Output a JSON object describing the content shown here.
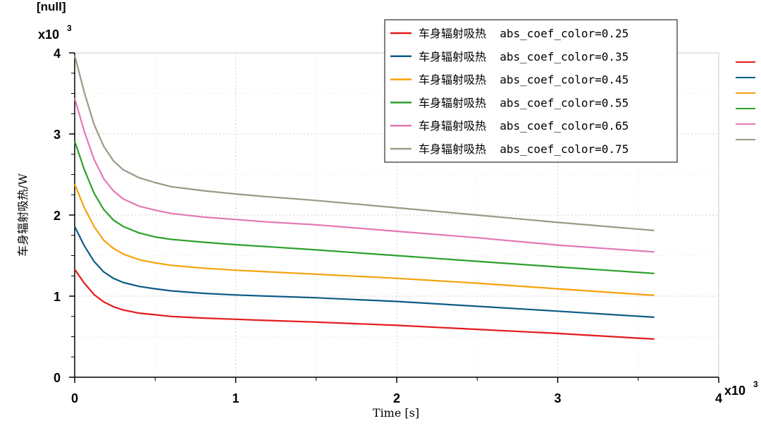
{
  "page": {
    "unit_label": "[null]",
    "y_multiplier": "x10",
    "y_multiplier_exp": "3",
    "x_multiplier": "x10",
    "x_multiplier_exp": "3"
  },
  "chart_data": {
    "type": "line",
    "xlabel": "Time [s]",
    "ylabel": "车身辐射吸热/W",
    "xlim": [
      0,
      4000
    ],
    "ylim": [
      0,
      4000
    ],
    "x_ticks": [
      0,
      1,
      2,
      3,
      4
    ],
    "y_ticks": [
      0,
      1,
      2,
      3,
      4
    ],
    "grid": true,
    "legend_position": "top-right",
    "x": [
      0,
      60,
      120,
      180,
      240,
      300,
      400,
      500,
      600,
      800,
      1000,
      1200,
      1500,
      2000,
      2500,
      3000,
      3600
    ],
    "series": [
      {
        "name": "车身辐射吸热  abs_coef_color=0.25",
        "color": "#e31a1c",
        "values": [
          1330,
          1160,
          1020,
          930,
          870,
          830,
          790,
          770,
          750,
          730,
          715,
          700,
          680,
          640,
          590,
          540,
          470
        ]
      },
      {
        "name": "车身辐射吸热  abs_coef_color=0.35",
        "color": "#0d5b86",
        "values": [
          1860,
          1620,
          1430,
          1300,
          1220,
          1170,
          1120,
          1090,
          1065,
          1035,
          1015,
          1000,
          980,
          935,
          875,
          815,
          740
        ]
      },
      {
        "name": "车身辐射吸热  abs_coef_color=0.45",
        "color": "#f5a20b",
        "values": [
          2380,
          2090,
          1860,
          1690,
          1590,
          1520,
          1450,
          1410,
          1380,
          1345,
          1320,
          1300,
          1270,
          1220,
          1160,
          1090,
          1010
        ]
      },
      {
        "name": "车身辐射吸热  abs_coef_color=0.55",
        "color": "#2ca02c",
        "values": [
          2910,
          2560,
          2270,
          2070,
          1940,
          1860,
          1780,
          1730,
          1700,
          1665,
          1635,
          1610,
          1570,
          1500,
          1430,
          1360,
          1280
        ]
      },
      {
        "name": "车身辐射吸热  abs_coef_color=0.65",
        "color": "#e377b6",
        "values": [
          3440,
          3030,
          2690,
          2450,
          2300,
          2200,
          2110,
          2060,
          2020,
          1975,
          1945,
          1915,
          1880,
          1800,
          1720,
          1630,
          1545
        ]
      },
      {
        "name": "车身辐射吸热  abs_coef_color=0.75",
        "color": "#9a9a86",
        "values": [
          3970,
          3510,
          3120,
          2850,
          2670,
          2560,
          2460,
          2400,
          2350,
          2300,
          2260,
          2225,
          2180,
          2090,
          2000,
          1910,
          1810
        ]
      }
    ]
  }
}
